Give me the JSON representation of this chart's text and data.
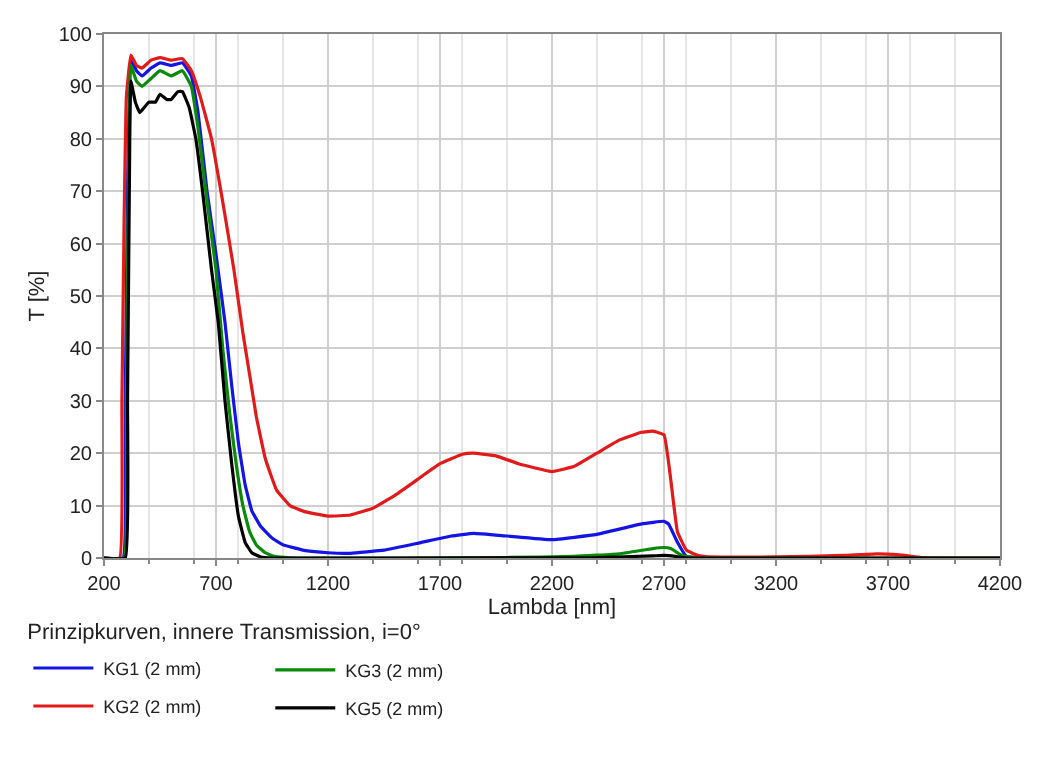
{
  "chart_data": {
    "type": "line",
    "xlabel": "Lambda [nm]",
    "ylabel": "T [%]",
    "legend_title": "Prinzipkurven, innere Transmission, i=0°",
    "xlim": [
      200,
      4200
    ],
    "xticks": [
      200,
      700,
      1200,
      1700,
      2200,
      2700,
      3200,
      3700,
      4200
    ],
    "ylim": [
      0,
      100
    ],
    "yticks": [
      0,
      10,
      20,
      30,
      40,
      50,
      60,
      70,
      80,
      90,
      100
    ],
    "grid": true,
    "legend": "bottom left",
    "marker": "none",
    "line_style": "solid",
    "series": [
      {
        "name": "KG1 (2 mm)",
        "color": "#1414e6",
        "x": [
          200,
          285,
          295,
          305,
          320,
          345,
          370,
          410,
          450,
          500,
          550,
          590,
          620,
          660,
          700,
          740,
          770,
          800,
          830,
          860,
          900,
          950,
          1000,
          1100,
          1200,
          1300,
          1450,
          1600,
          1750,
          1850,
          2000,
          2200,
          2400,
          2600,
          2700,
          2720,
          2760,
          2800,
          2900
        ],
        "values": [
          0,
          0,
          30,
          70,
          95,
          93,
          92,
          93.5,
          94.5,
          94,
          94.5,
          92,
          85,
          70,
          58,
          45,
          33,
          22,
          14,
          9,
          6,
          3.8,
          2.5,
          1.4,
          1,
          0.9,
          1.5,
          2.8,
          4.2,
          4.7,
          4.2,
          3.5,
          4.5,
          6.5,
          7,
          6.5,
          3,
          0.3,
          0
        ]
      },
      {
        "name": "KG2 (2 mm)",
        "color": "#e31a1a",
        "x": [
          200,
          270,
          280,
          290,
          300,
          320,
          345,
          370,
          410,
          450,
          500,
          550,
          590,
          630,
          680,
          730,
          780,
          820,
          850,
          880,
          920,
          970,
          1030,
          1100,
          1200,
          1300,
          1400,
          1500,
          1600,
          1700,
          1800,
          1850,
          1950,
          2050,
          2200,
          2300,
          2400,
          2500,
          2600,
          2650,
          2700,
          2730,
          2760,
          2800,
          2850,
          2900,
          3200,
          3500,
          3650,
          3750,
          3850,
          4200
        ],
        "values": [
          0,
          0,
          30,
          65,
          88,
          96,
          94,
          93.5,
          95,
          95.5,
          95,
          95.3,
          93,
          88,
          80,
          68,
          55,
          43,
          35,
          27,
          19,
          13,
          10,
          8.8,
          8,
          8.2,
          9.5,
          12,
          15,
          18,
          19.8,
          20,
          19.5,
          18,
          16.5,
          17.5,
          20,
          22.5,
          24,
          24.2,
          23.5,
          15,
          5,
          1.5,
          0.5,
          0.2,
          0.2,
          0.5,
          0.8,
          0.6,
          0.1,
          0
        ]
      },
      {
        "name": "KG3 (2 mm)",
        "color": "#0a8a0a",
        "x": [
          200,
          290,
          300,
          310,
          320,
          345,
          370,
          410,
          450,
          500,
          550,
          590,
          620,
          660,
          700,
          730,
          760,
          790,
          820,
          850,
          880,
          920,
          960,
          1050,
          1500,
          2000,
          2300,
          2500,
          2650,
          2700,
          2730,
          2780,
          2850,
          3200,
          4200
        ],
        "values": [
          0,
          0,
          30,
          75,
          94,
          91,
          90,
          91.5,
          93,
          92,
          93,
          90,
          82,
          68,
          55,
          40,
          28,
          18,
          10,
          5,
          2.5,
          1,
          0.3,
          0,
          0,
          0.1,
          0.3,
          0.8,
          1.8,
          2,
          1.8,
          0.5,
          0,
          0,
          0
        ]
      },
      {
        "name": "KG5 (2 mm)",
        "color": "#000000",
        "x": [
          200,
          295,
          305,
          315,
          320,
          340,
          360,
          400,
          430,
          450,
          480,
          500,
          530,
          550,
          580,
          610,
          640,
          680,
          710,
          740,
          770,
          800,
          830,
          860,
          900,
          950,
          1500,
          2400,
          2650,
          2700,
          2750,
          2800,
          4200
        ],
        "values": [
          0,
          0,
          30,
          80,
          91,
          87,
          85,
          87,
          87,
          88.5,
          87.5,
          87.5,
          89,
          89,
          86,
          80,
          70,
          55,
          45,
          30,
          18,
          8,
          3,
          1,
          0.2,
          0,
          0,
          0.1,
          0.4,
          0.5,
          0.3,
          0,
          0
        ]
      }
    ]
  }
}
